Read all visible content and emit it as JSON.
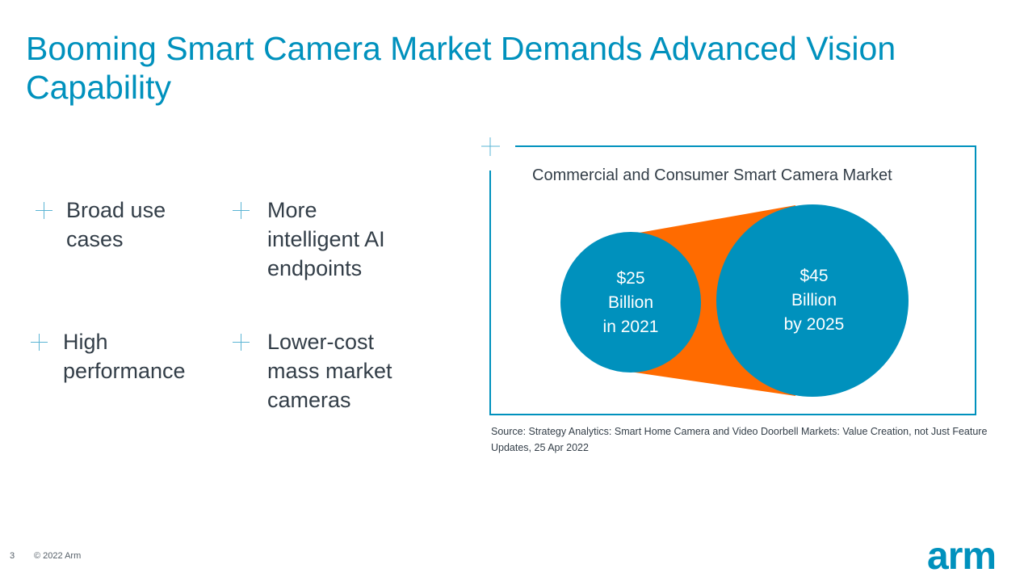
{
  "slide": {
    "title": "Booming Smart Camera Market Demands Advanced Vision Capability"
  },
  "bullets": [
    {
      "text": "Broad use\ncases"
    },
    {
      "text": "More\nintelligent AI\nendpoints"
    },
    {
      "text": "High\nperformance"
    },
    {
      "text": "Lower-cost\nmass market\ncameras"
    }
  ],
  "chart": {
    "title": "Commercial and Consumer Smart Camera Market",
    "left_label": "$25\nBillion\nin 2021",
    "right_label": "$45\nBillion\nby 2025",
    "source": "Source: Strategy Analytics: Smart Home Camera and Video Doorbell Markets: Value Creation, not Just Feature Updates, 25 Apr 2022",
    "colors": {
      "circle": "#0091bd",
      "connector": "#ff6b00",
      "frame": "#0091bd"
    }
  },
  "chart_data": {
    "type": "other",
    "title": "Commercial and Consumer Smart Camera Market",
    "series": [
      {
        "category": "2021",
        "value": 25
      },
      {
        "category": "2025",
        "value": 45
      }
    ]
  },
  "footer": {
    "page_number": "3",
    "copyright": "© 2022 Arm",
    "logo": "arm"
  }
}
